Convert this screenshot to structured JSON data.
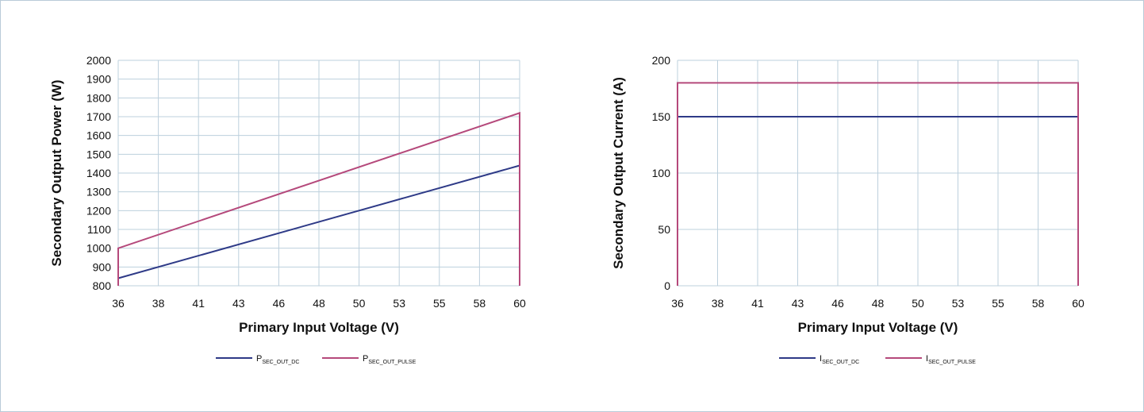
{
  "chart_data": [
    {
      "type": "line",
      "title": "",
      "xlabel": "Primary Input Voltage (V)",
      "ylabel": "Secondary Output Power (W)",
      "x_ticks": [
        "36",
        "38",
        "41",
        "43",
        "46",
        "48",
        "50",
        "53",
        "55",
        "58",
        "60"
      ],
      "xlim": [
        36,
        60
      ],
      "y_ticks": [
        "800",
        "900",
        "1000",
        "1100",
        "1200",
        "1300",
        "1400",
        "1500",
        "1600",
        "1700",
        "1800",
        "1900",
        "2000"
      ],
      "ylim": [
        800,
        2000
      ],
      "grid": true,
      "legend": "bottom",
      "series": [
        {
          "legend_main": "P",
          "legend_sub": "SEC_OUT_DC",
          "color": "#2e3a87",
          "x": [
            36,
            60
          ],
          "y": [
            840,
            1440
          ]
        },
        {
          "legend_main": "P",
          "legend_sub": "SEC_OUT_PULSE",
          "color": "#b5497b",
          "x": [
            36,
            36,
            60,
            60
          ],
          "y": [
            800,
            1000,
            1720,
            800
          ]
        }
      ]
    },
    {
      "type": "line",
      "title": "",
      "xlabel": "Primary Input Voltage (V)",
      "ylabel": "Secondary Output Current (A)",
      "x_ticks": [
        "36",
        "38",
        "41",
        "43",
        "46",
        "48",
        "50",
        "53",
        "55",
        "58",
        "60"
      ],
      "xlim": [
        36,
        60
      ],
      "y_ticks": [
        "0",
        "50",
        "100",
        "150",
        "200"
      ],
      "ylim": [
        0,
        200
      ],
      "grid": true,
      "legend": "bottom",
      "series": [
        {
          "legend_main": "I",
          "legend_sub": "SEC_OUT_DC",
          "color": "#2e3a87",
          "x": [
            36,
            60
          ],
          "y": [
            150,
            150
          ]
        },
        {
          "legend_main": "I",
          "legend_sub": "SEC_OUT_PULSE",
          "color": "#b5497b",
          "x": [
            36,
            36,
            60,
            60
          ],
          "y": [
            0,
            180,
            180,
            0
          ]
        }
      ]
    }
  ]
}
